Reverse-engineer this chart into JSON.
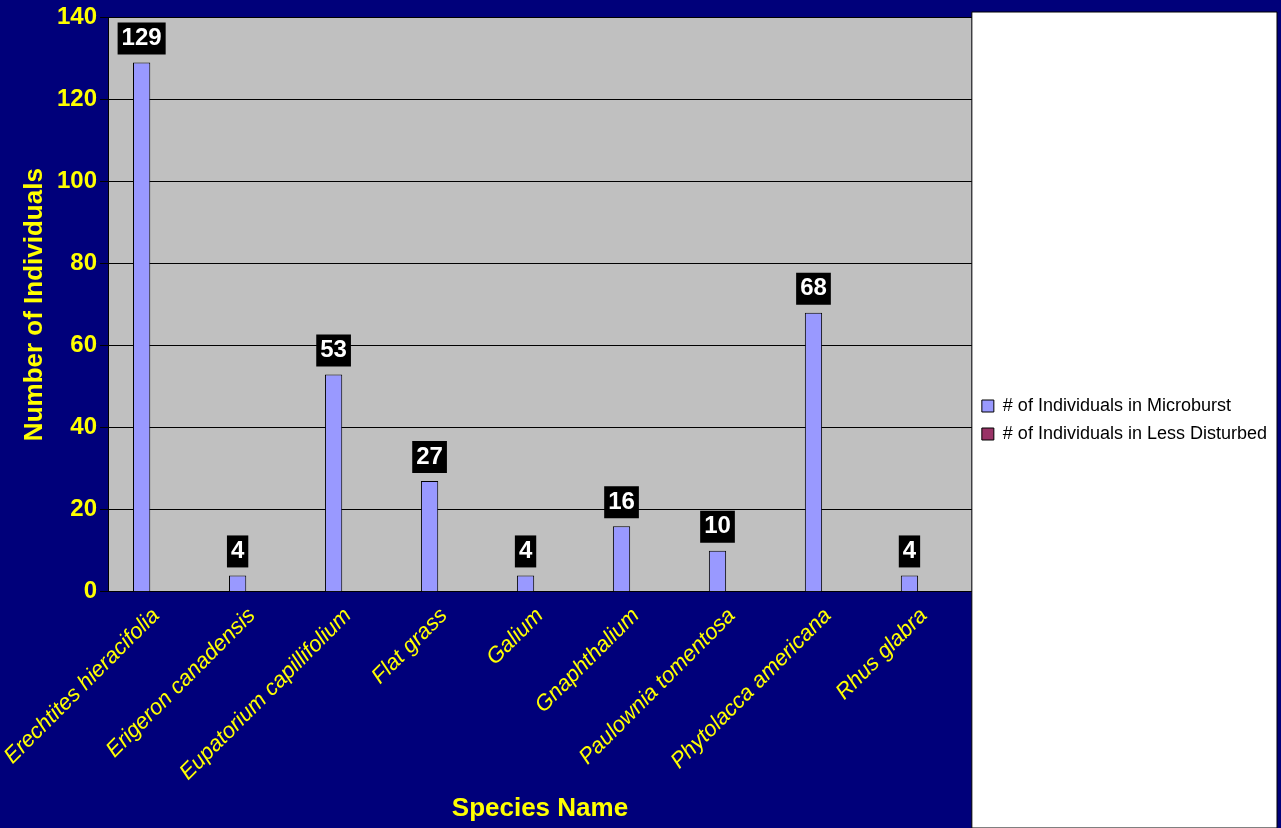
{
  "chart_data": {
    "type": "bar",
    "xlabel": "Species Name",
    "ylabel": "Number of Individuals",
    "categories": [
      "Erechtites hieracifolia",
      "Erigeron canadensis",
      "Eupatorium capillifolium",
      "Flat grass",
      "Galium",
      "Gnaphthalium",
      "Paulownia tomentosa",
      "Phytolacca americana",
      "Rhus glabra"
    ],
    "series": [
      {
        "name": "# of Individuals in Microburst",
        "color": "#9999ff",
        "values": [
          129,
          4,
          53,
          27,
          4,
          16,
          10,
          68,
          4
        ],
        "value_labels": [
          "129",
          "4",
          "53",
          "27",
          "4",
          "16",
          "10",
          "68",
          "4"
        ]
      },
      {
        "name": "# of Individuals in Less Disturbed",
        "color": "#993366",
        "values": [
          0,
          0,
          0,
          0,
          0,
          0,
          0,
          0,
          0
        ]
      }
    ],
    "ylim": [
      0,
      140
    ],
    "yticks": [
      0,
      20,
      40,
      60,
      80,
      100,
      120,
      140
    ],
    "grid": "y",
    "legend": "right"
  }
}
